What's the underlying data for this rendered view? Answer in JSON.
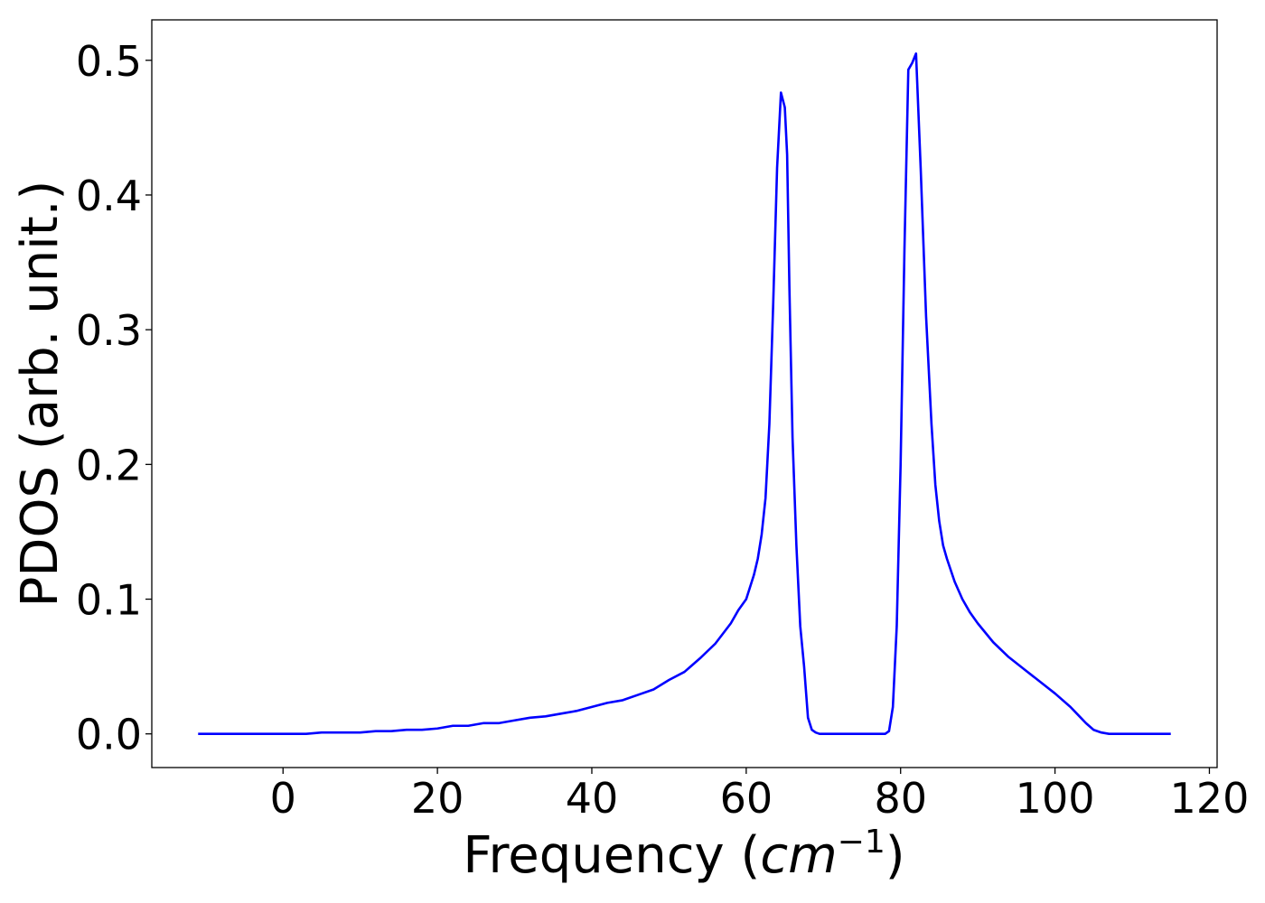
{
  "chart_data": {
    "type": "line",
    "xlabel": "Frequency (cm⁻¹)",
    "xlabel_parts": {
      "prefix": "Frequency (",
      "math": "cm",
      "exponent": "−1",
      "suffix": ")"
    },
    "ylabel": "PDOS (arb. unit.)",
    "xlim": [
      -17,
      121
    ],
    "ylim": [
      -0.025,
      0.53
    ],
    "xticks": [
      0,
      20,
      40,
      60,
      80,
      100,
      120
    ],
    "xtick_labels": [
      "0",
      "20",
      "40",
      "60",
      "80",
      "100",
      "120"
    ],
    "yticks": [
      0.0,
      0.1,
      0.2,
      0.3,
      0.4,
      0.5
    ],
    "ytick_labels": [
      "0.0",
      "0.1",
      "0.2",
      "0.3",
      "0.4",
      "0.5"
    ],
    "grid": false,
    "series": [
      {
        "color": "#0000ff",
        "x": [
          -11,
          0,
          3,
          5,
          8,
          10,
          12,
          14,
          16,
          18,
          20,
          22,
          24,
          26,
          28,
          30,
          32,
          34,
          36,
          38,
          40,
          42,
          44,
          46,
          48,
          50,
          52,
          54,
          56,
          58,
          59,
          60,
          61,
          61.5,
          62,
          62.5,
          63,
          63.5,
          64,
          64.5,
          65,
          65.3,
          65.6,
          66,
          66.5,
          67,
          67.5,
          68,
          68.5,
          69,
          69.5,
          70,
          72,
          75,
          78,
          78.5,
          79,
          79.5,
          80,
          80.5,
          81,
          81.5,
          82,
          82.6,
          83.3,
          84,
          84.5,
          85,
          85.5,
          86,
          87,
          88,
          89,
          90,
          92,
          94,
          96,
          98,
          100,
          102,
          103,
          104,
          105,
          106,
          107,
          109,
          112,
          115
        ],
        "y": [
          0.0,
          0.0,
          0.0,
          0.001,
          0.001,
          0.001,
          0.002,
          0.002,
          0.003,
          0.003,
          0.004,
          0.006,
          0.006,
          0.008,
          0.008,
          0.01,
          0.012,
          0.013,
          0.015,
          0.017,
          0.02,
          0.023,
          0.025,
          0.029,
          0.033,
          0.04,
          0.046,
          0.056,
          0.067,
          0.082,
          0.092,
          0.1,
          0.118,
          0.13,
          0.148,
          0.175,
          0.23,
          0.32,
          0.42,
          0.476,
          0.465,
          0.43,
          0.33,
          0.22,
          0.14,
          0.08,
          0.05,
          0.012,
          0.003,
          0.001,
          0.0,
          0.0,
          0.0,
          0.0,
          0.0,
          0.002,
          0.02,
          0.08,
          0.2,
          0.36,
          0.493,
          0.498,
          0.505,
          0.42,
          0.31,
          0.23,
          0.185,
          0.158,
          0.14,
          0.13,
          0.113,
          0.1,
          0.09,
          0.082,
          0.068,
          0.057,
          0.048,
          0.039,
          0.03,
          0.02,
          0.014,
          0.008,
          0.003,
          0.001,
          0.0,
          0.0,
          0.0,
          0.0
        ]
      }
    ]
  }
}
